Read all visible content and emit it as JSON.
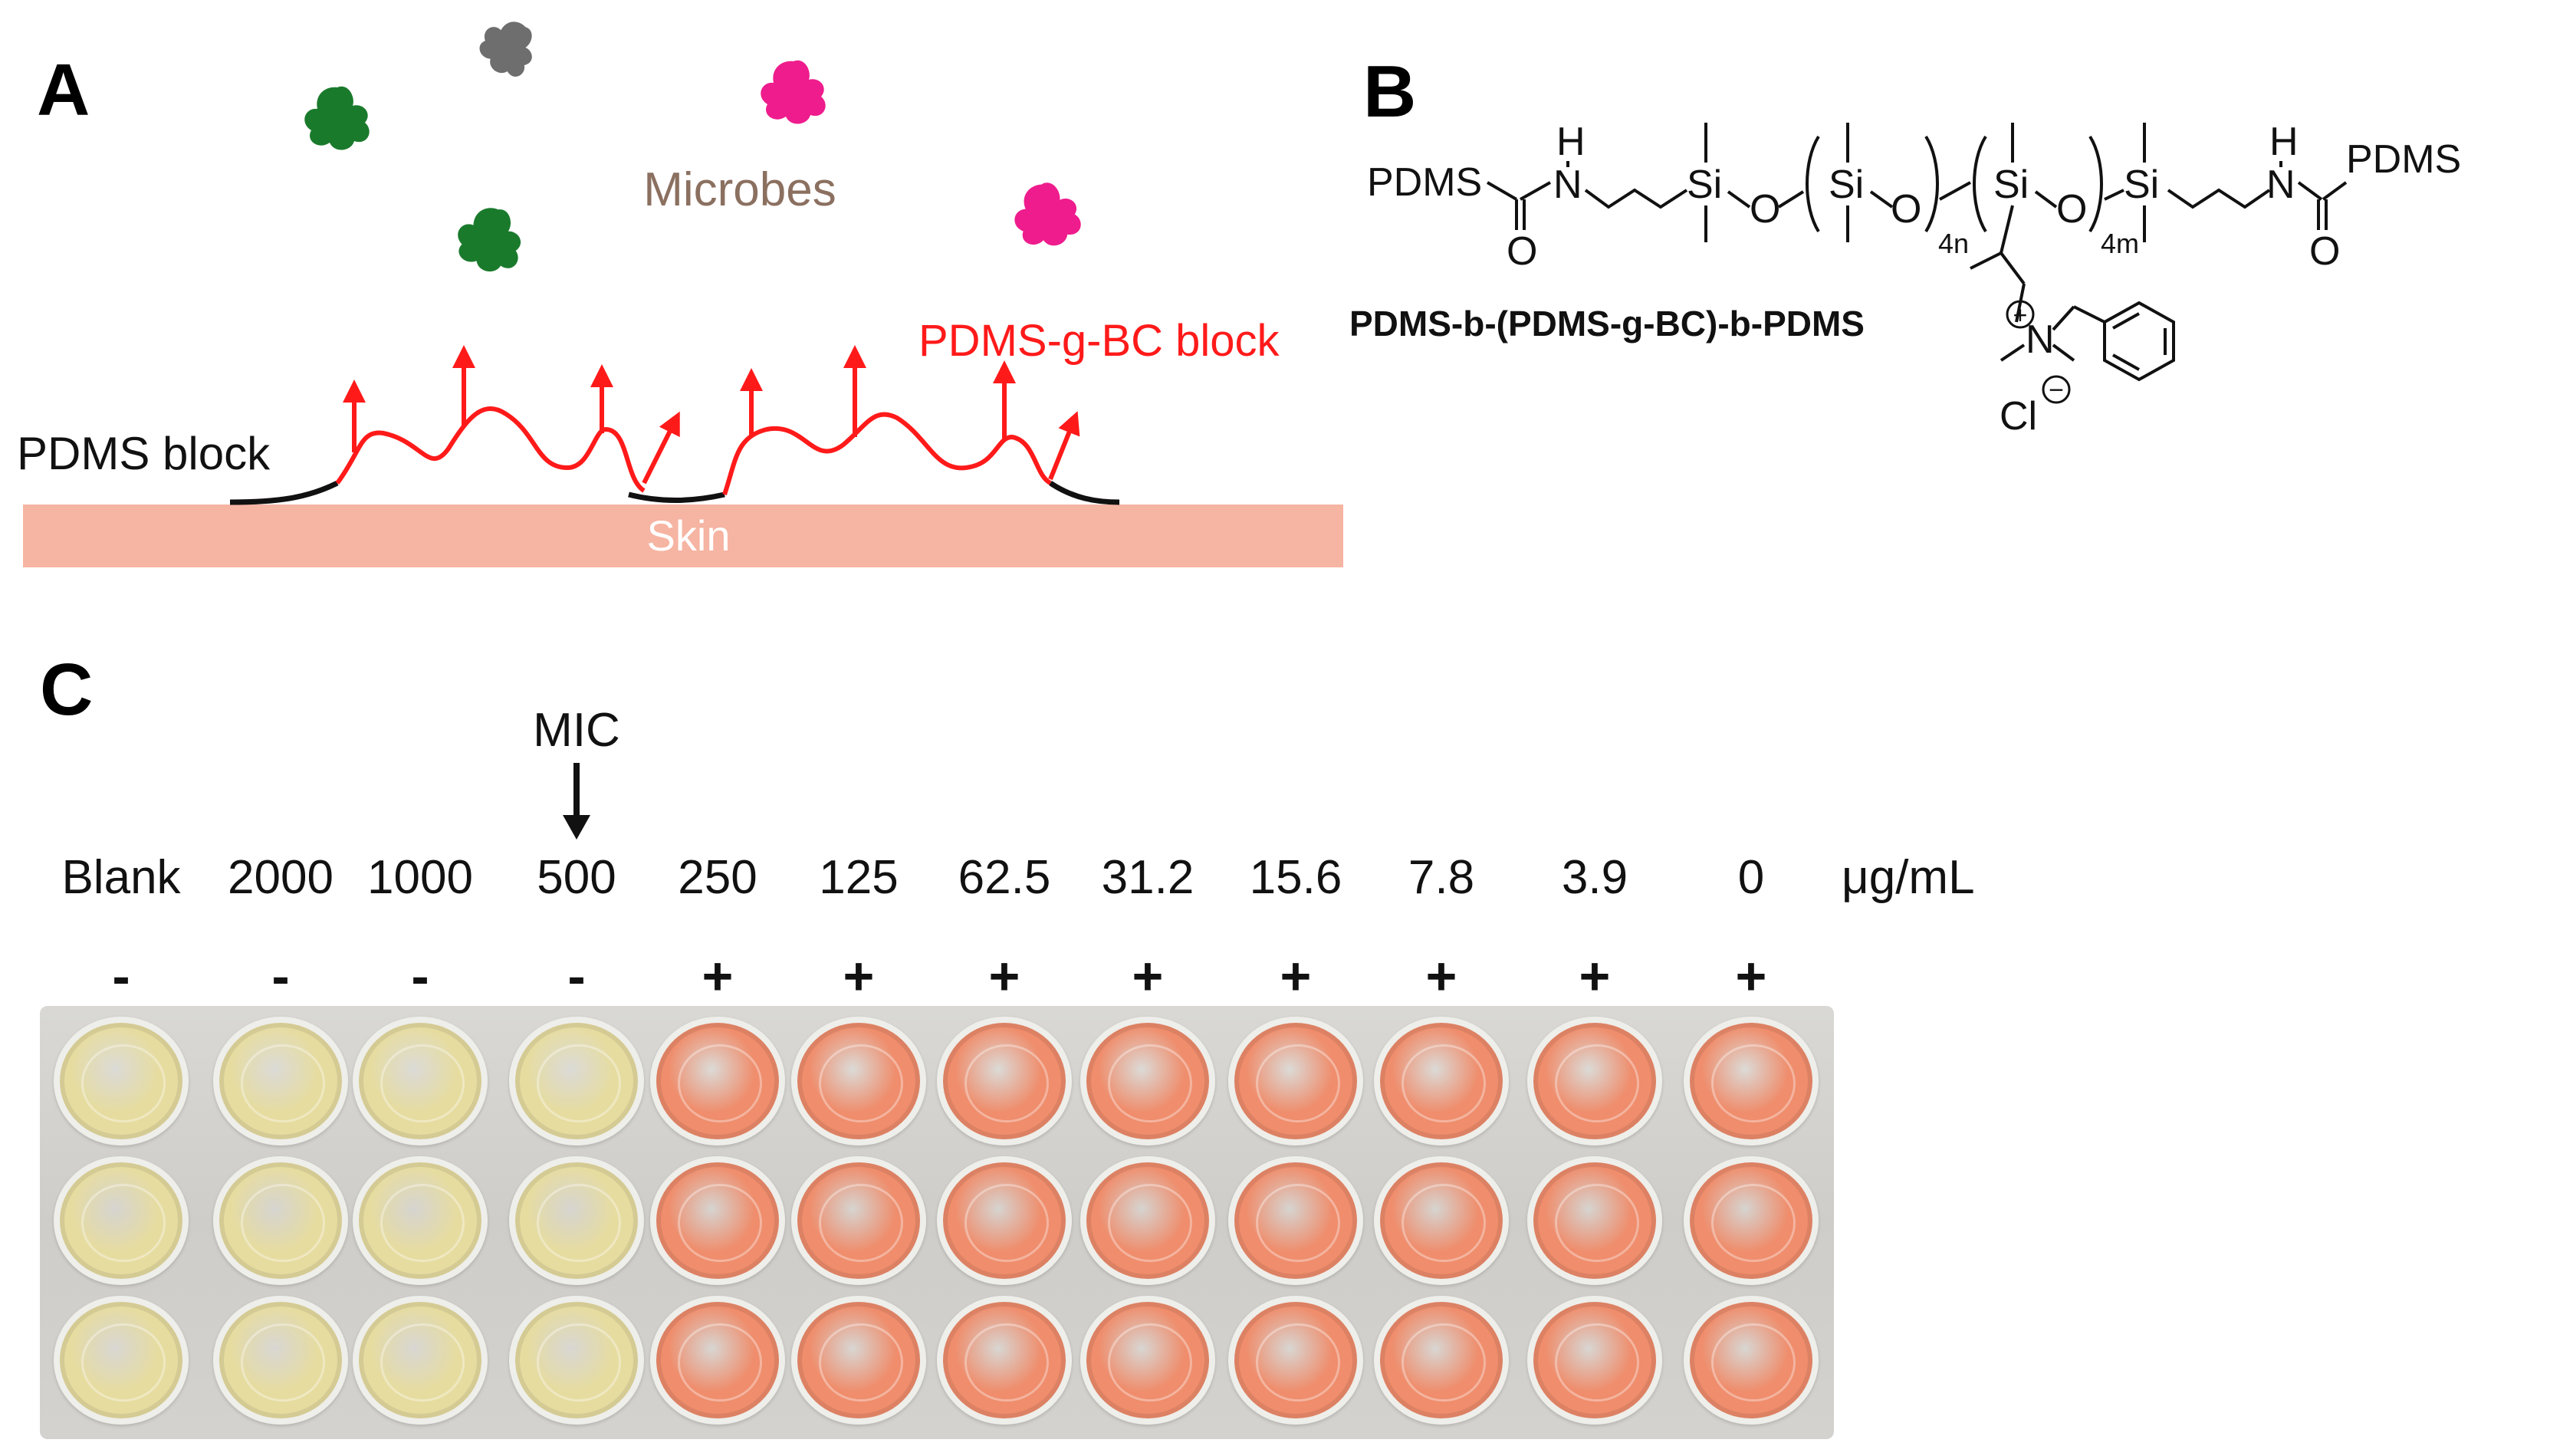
{
  "panels": {
    "a": {
      "label": "A",
      "microbes_label": "Microbes",
      "graft_label": "PDMS-g-BC block",
      "pdms_label": "PDMS block",
      "skin_label": "Skin",
      "colors": {
        "graft": "#ff1a1a",
        "skin": "#f6b4a2",
        "microbe_green": "#1a7a2c",
        "microbe_gray": "#6e6e6e",
        "microbe_magenta": "#ee1c8c",
        "microbes_text": "#8b7060"
      }
    },
    "b": {
      "label": "B",
      "polymer_name": "PDMS-b-(PDMS-g-BC)-b-PDMS",
      "structure_text": {
        "end_left": "PDMS",
        "end_right": "PDMS",
        "h1": "H",
        "n1": "N",
        "h2": "H",
        "n2": "N",
        "o1": "O",
        "o2": "O",
        "o_bridge": "O",
        "o3": "O",
        "o4": "O",
        "si1": "Si",
        "si2": "Si",
        "si3": "Si",
        "si4": "Si",
        "sub_4n": "4n",
        "sub_4m": "4m",
        "n_plus": "N",
        "plus": "+",
        "cl": "Cl",
        "minus": "−"
      }
    },
    "c": {
      "label": "C",
      "mic_label": "MIC",
      "unit": "μg/mL",
      "columns": [
        {
          "conc": "Blank",
          "result": "-"
        },
        {
          "conc": "2000",
          "result": "-"
        },
        {
          "conc": "1000",
          "result": "-"
        },
        {
          "conc": "500",
          "result": "-"
        },
        {
          "conc": "250",
          "result": "+"
        },
        {
          "conc": "125",
          "result": "+"
        },
        {
          "conc": "62.5",
          "result": "+"
        },
        {
          "conc": "31.2",
          "result": "+"
        },
        {
          "conc": "15.6",
          "result": "+"
        },
        {
          "conc": "7.8",
          "result": "+"
        },
        {
          "conc": "3.9",
          "result": "+"
        },
        {
          "conc": "0",
          "result": "+"
        }
      ],
      "rows": 3,
      "colors": {
        "negative_well": "#e6dca0",
        "positive_well": "#ef8d6c"
      }
    }
  }
}
